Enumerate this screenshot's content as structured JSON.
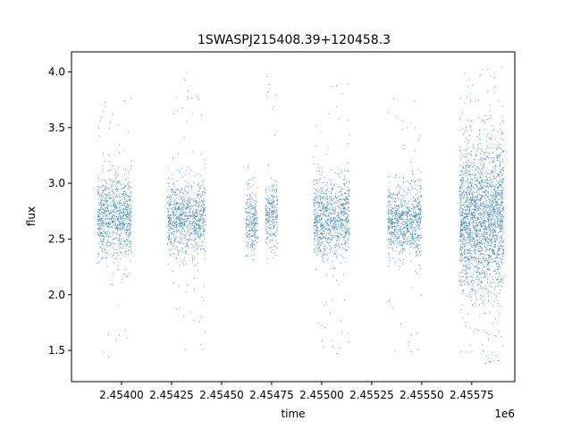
{
  "chart_data": {
    "type": "scatter",
    "title": "1SWASPJ215408.39+120458.3",
    "xlabel": "time",
    "ylabel": "flux",
    "x_offset_label": "1e6",
    "xlim": [
      2453750,
      2455965
    ],
    "ylim": [
      1.22,
      4.18
    ],
    "x_ticks": [
      {
        "value": 2454000,
        "label": "2.45400"
      },
      {
        "value": 2454250,
        "label": "2.45425"
      },
      {
        "value": 2454500,
        "label": "2.45450"
      },
      {
        "value": 2454750,
        "label": "2.45475"
      },
      {
        "value": 2455000,
        "label": "2.45500"
      },
      {
        "value": 2455250,
        "label": "2.45525"
      },
      {
        "value": 2455500,
        "label": "2.45550"
      },
      {
        "value": 2455750,
        "label": "2.45575"
      }
    ],
    "y_ticks": [
      {
        "value": 1.5,
        "label": "1.5"
      },
      {
        "value": 2.0,
        "label": "2.0"
      },
      {
        "value": 2.5,
        "label": "2.5"
      },
      {
        "value": 3.0,
        "label": "3.0"
      },
      {
        "value": 3.5,
        "label": "3.5"
      },
      {
        "value": 4.0,
        "label": "4.0"
      }
    ],
    "grid": false,
    "series": [
      {
        "color": "#1f77b4",
        "marker": "dot",
        "clusters": [
          {
            "x_start": 2453880,
            "x_end": 2454050,
            "center": 2.7,
            "spread": 0.18,
            "min": 1.4,
            "max": 3.8,
            "density": 900
          },
          {
            "x_start": 2454230,
            "x_end": 2454420,
            "center": 2.68,
            "spread": 0.16,
            "min": 1.5,
            "max": 4.0,
            "density": 900
          },
          {
            "x_start": 2454620,
            "x_end": 2454680,
            "center": 2.65,
            "spread": 0.14,
            "min": 2.3,
            "max": 3.2,
            "density": 250
          },
          {
            "x_start": 2454720,
            "x_end": 2454780,
            "center": 2.7,
            "spread": 0.14,
            "min": 2.2,
            "max": 4.0,
            "density": 250
          },
          {
            "x_start": 2454960,
            "x_end": 2455140,
            "center": 2.7,
            "spread": 0.17,
            "min": 1.4,
            "max": 3.9,
            "density": 900
          },
          {
            "x_start": 2455330,
            "x_end": 2455500,
            "center": 2.66,
            "spread": 0.16,
            "min": 1.45,
            "max": 3.9,
            "density": 800
          },
          {
            "x_start": 2455690,
            "x_end": 2455910,
            "center": 2.68,
            "spread": 0.32,
            "min": 1.35,
            "max": 4.05,
            "density": 2200
          }
        ]
      }
    ]
  }
}
